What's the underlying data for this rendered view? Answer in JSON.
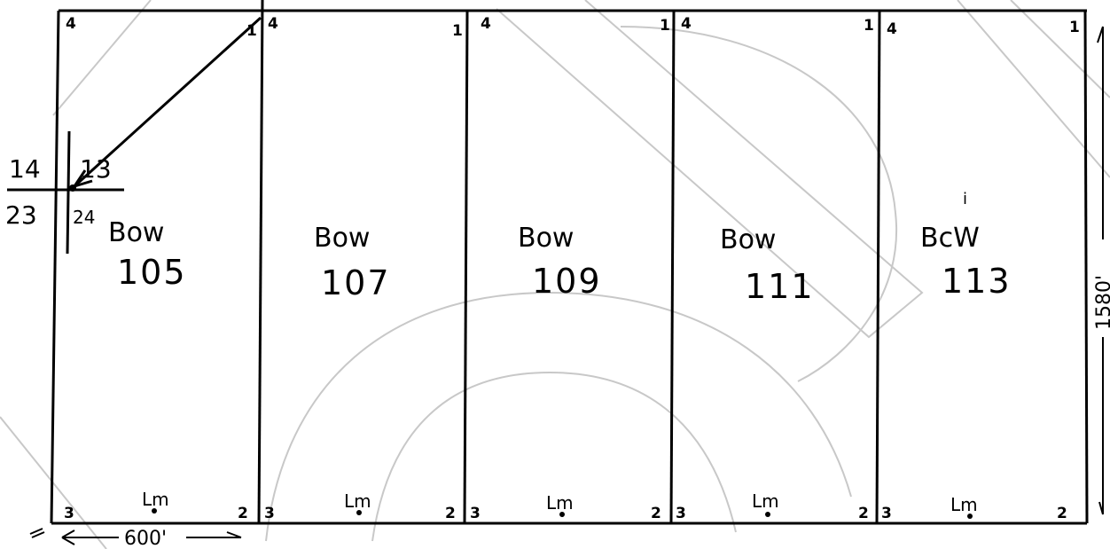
{
  "tracts": [
    {
      "label": "Bow",
      "number": "105",
      "c4": "4",
      "c1": "1",
      "c3": "3",
      "c2": "2",
      "marker": "Lm"
    },
    {
      "label": "Bow",
      "number": "107",
      "c4": "4",
      "c1": "1",
      "c3": "3",
      "c2": "2",
      "marker": "Lm"
    },
    {
      "label": "Bow",
      "number": "109",
      "c4": "4",
      "c1": "1",
      "c3": "3",
      "c2": "2",
      "marker": "Lm"
    },
    {
      "label": "Bow",
      "number": "111",
      "c4": "4",
      "c1": "1",
      "c3": "3",
      "c2": "2",
      "marker": "Lm"
    },
    {
      "label": "BcW",
      "number": "113",
      "c4": "4",
      "c1": "1",
      "c3": "3",
      "c2": "2",
      "marker": "Lm"
    }
  ],
  "section_corner": {
    "nw": "14",
    "ne": "13",
    "sw": "23",
    "se": "24"
  },
  "dimensions": {
    "width": "600'",
    "height": "1580'"
  },
  "stray_mark": "i"
}
